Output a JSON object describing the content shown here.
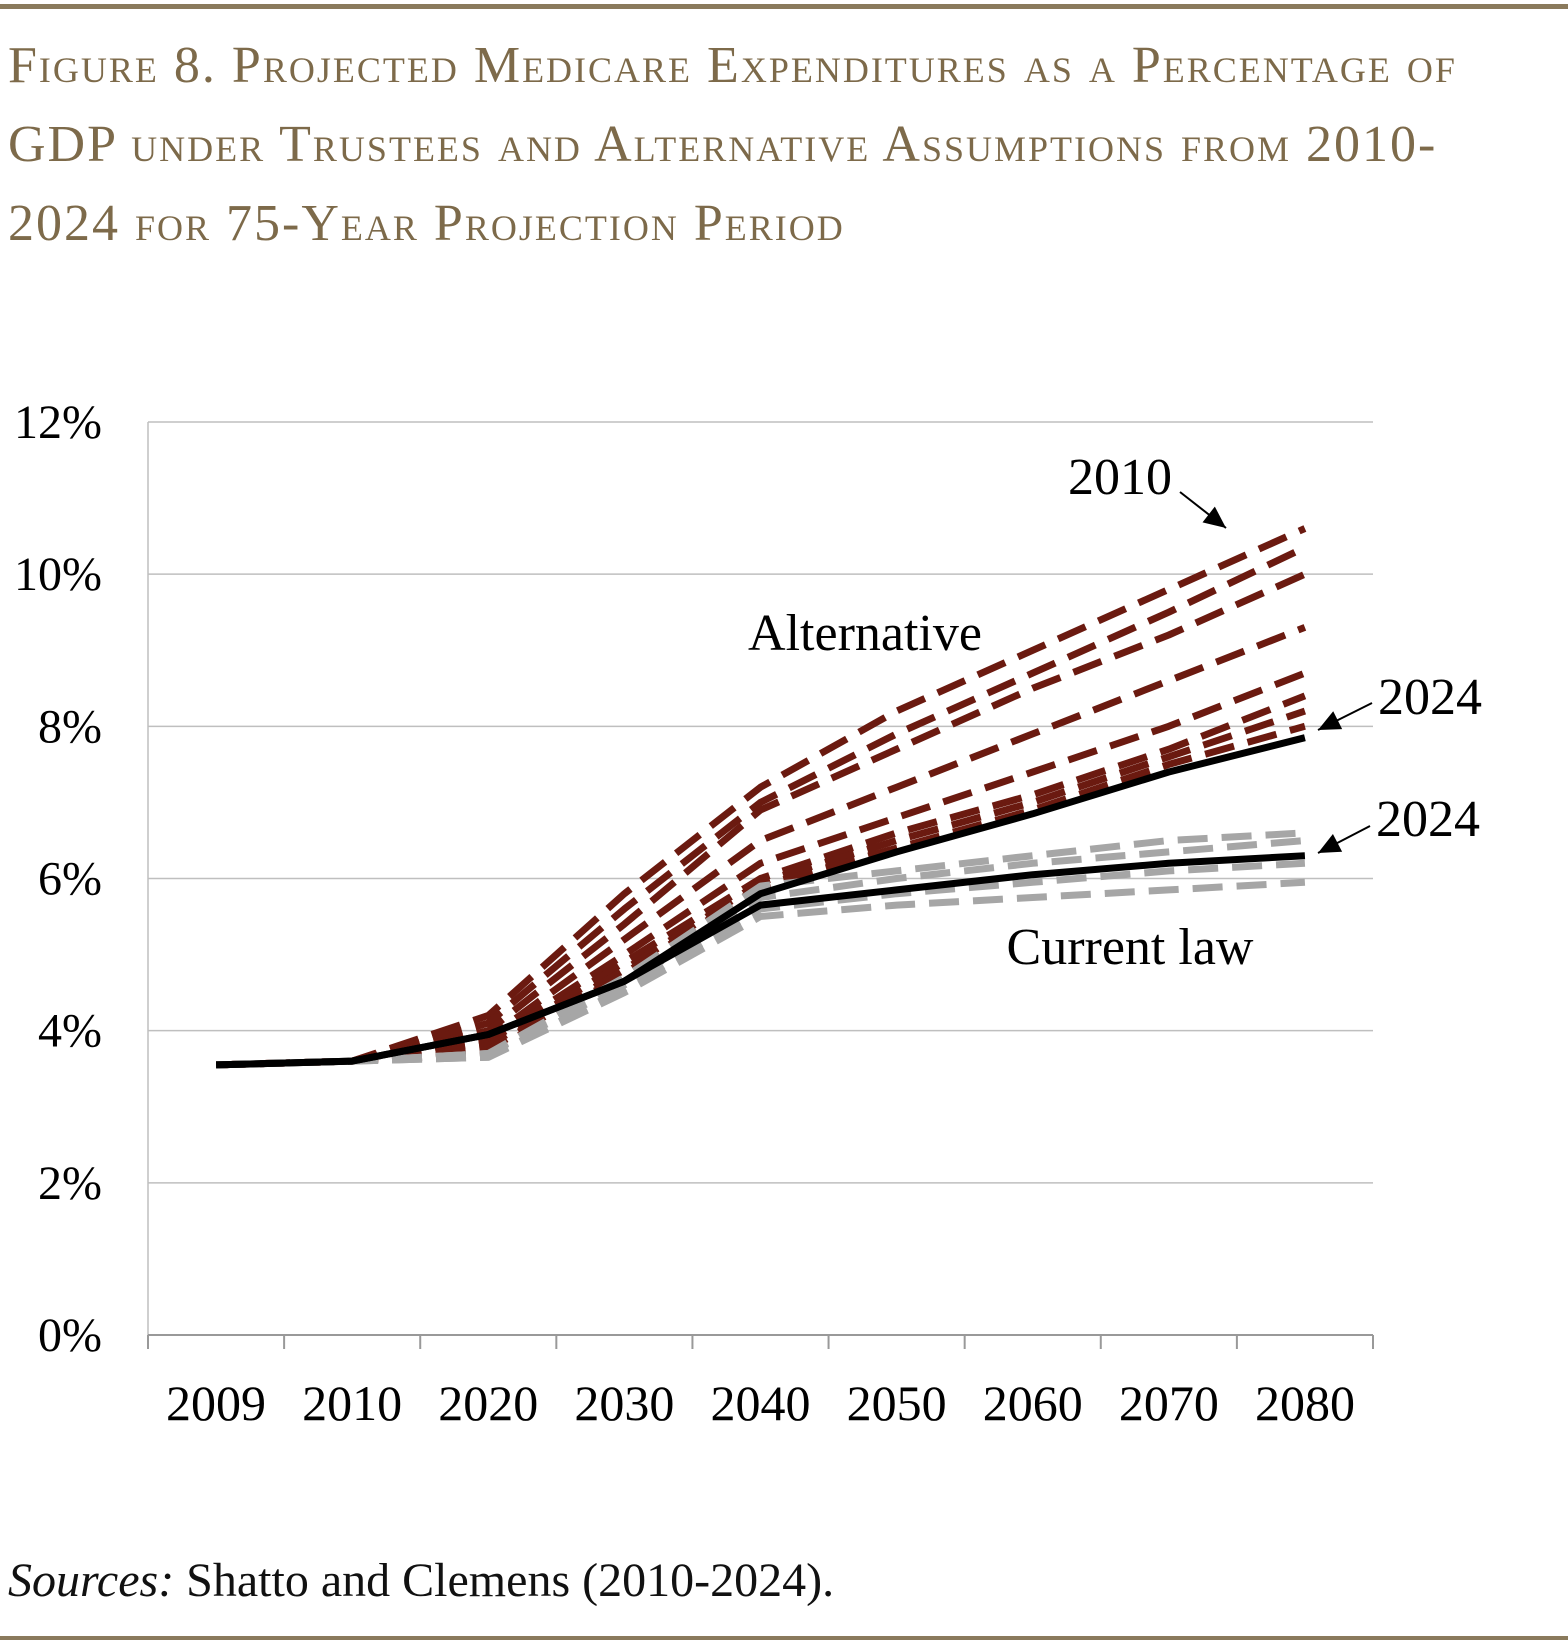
{
  "chart_data": {
    "type": "line",
    "title": "Figure 8. Projected Medicare Expenditures as a Percentage of GDP under Trustees and Alternative Assumptions from 2010-2024 for 75-Year Projection Period",
    "source_label": "Sources:",
    "source": "Shatto and Clemens (2010-2024).",
    "categories": [
      "2009",
      "2010",
      "2020",
      "2030",
      "2040",
      "2050",
      "2060",
      "2070",
      "2080"
    ],
    "ylim": [
      0,
      12
    ],
    "yticks": [
      {
        "value": 0,
        "label": "0%"
      },
      {
        "value": 2,
        "label": "2%"
      },
      {
        "value": 4,
        "label": "4%"
      },
      {
        "value": 6,
        "label": "6%"
      },
      {
        "value": 8,
        "label": "8%"
      },
      {
        "value": 10,
        "label": "10%"
      },
      {
        "value": 12,
        "label": "12%"
      }
    ],
    "grid": true,
    "series": [
      {
        "color": "#6b1a10",
        "dashed": true,
        "values": [
          3.55,
          3.6,
          4.2,
          5.8,
          7.2,
          8.2,
          9.0,
          9.8,
          10.6
        ]
      },
      {
        "color": "#6b1a10",
        "dashed": true,
        "values": [
          3.55,
          3.6,
          4.1,
          5.6,
          7.0,
          7.9,
          8.7,
          9.5,
          10.35
        ]
      },
      {
        "color": "#6b1a10",
        "dashed": true,
        "values": [
          3.55,
          3.6,
          4.0,
          5.4,
          6.9,
          7.7,
          8.5,
          9.2,
          10.0
        ]
      },
      {
        "color": "#6b1a10",
        "dashed": true,
        "values": [
          3.55,
          3.6,
          3.9,
          5.2,
          6.5,
          7.2,
          7.9,
          8.6,
          9.3
        ]
      },
      {
        "color": "#6b1a10",
        "dashed": true,
        "values": [
          3.55,
          3.6,
          3.85,
          5.0,
          6.2,
          6.8,
          7.4,
          8.0,
          8.7
        ]
      },
      {
        "color": "#6b1a10",
        "dashed": true,
        "values": [
          3.55,
          3.6,
          3.8,
          4.9,
          6.0,
          6.6,
          7.1,
          7.7,
          8.4
        ]
      },
      {
        "color": "#6b1a10",
        "dashed": true,
        "values": [
          3.55,
          3.6,
          3.75,
          4.8,
          5.95,
          6.5,
          7.0,
          7.6,
          8.2
        ]
      },
      {
        "color": "#6b1a10",
        "dashed": true,
        "values": [
          3.55,
          3.6,
          3.7,
          4.75,
          5.9,
          6.4,
          6.9,
          7.5,
          8.0
        ]
      },
      {
        "color": "#a6a6a6",
        "dashed": true,
        "values": [
          3.55,
          3.6,
          3.7,
          4.7,
          5.9,
          6.1,
          6.3,
          6.5,
          6.6
        ]
      },
      {
        "color": "#a6a6a6",
        "dashed": true,
        "values": [
          3.55,
          3.6,
          3.7,
          4.6,
          5.75,
          6.0,
          6.2,
          6.35,
          6.5
        ]
      },
      {
        "color": "#a6a6a6",
        "dashed": true,
        "values": [
          3.55,
          3.6,
          3.65,
          4.55,
          5.6,
          5.8,
          5.95,
          6.1,
          6.2
        ]
      },
      {
        "color": "#a6a6a6",
        "dashed": true,
        "values": [
          3.55,
          3.6,
          3.65,
          4.5,
          5.5,
          5.65,
          5.75,
          5.85,
          5.95
        ]
      },
      {
        "color": "#000000",
        "dashed": false,
        "values": [
          3.55,
          3.6,
          3.95,
          4.65,
          5.8,
          6.35,
          6.85,
          7.4,
          7.85
        ]
      },
      {
        "color": "#000000",
        "dashed": false,
        "values": [
          3.55,
          3.6,
          3.95,
          4.65,
          5.65,
          5.85,
          6.05,
          6.2,
          6.3
        ]
      }
    ],
    "annotations": [
      {
        "text": "2010",
        "series": 0
      },
      {
        "text": "Alternative"
      },
      {
        "text": "2024",
        "series": 12
      },
      {
        "text": "2024",
        "series": 13
      },
      {
        "text": "Current law"
      }
    ]
  }
}
